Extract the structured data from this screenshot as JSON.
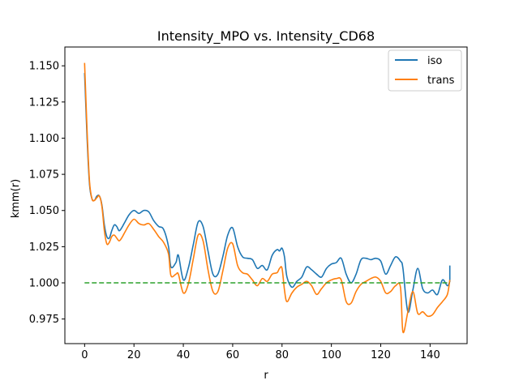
{
  "chart_data": {
    "type": "line",
    "title": "Intensity_MPO vs. Intensity_CD68",
    "xlabel": "r",
    "ylabel": "kmm(r)",
    "xlim": [
      -8,
      155
    ],
    "ylim": [
      0.958,
      1.163
    ],
    "xticks": [
      0,
      20,
      40,
      60,
      80,
      100,
      120,
      140
    ],
    "yticks": [
      0.975,
      1.0,
      1.025,
      1.05,
      1.075,
      1.1,
      1.125,
      1.15
    ],
    "ytick_labels": [
      "0.975",
      "1.000",
      "1.025",
      "1.050",
      "1.075",
      "1.100",
      "1.125",
      "1.150"
    ],
    "legend_position": "upper right",
    "grid": false,
    "series": [
      {
        "name": "iso",
        "color": "#1f77b4",
        "dash": "solid",
        "x": [
          0,
          1,
          2,
          3,
          4,
          5,
          6,
          7,
          8,
          9,
          10,
          11,
          12,
          13,
          14,
          15,
          16,
          18,
          20,
          22,
          24,
          26,
          28,
          30,
          32,
          34,
          35,
          37,
          38,
          40,
          42,
          44,
          46,
          48,
          50,
          52,
          54,
          56,
          58,
          60,
          62,
          64,
          66,
          68,
          70,
          72,
          74,
          76,
          78,
          79,
          80,
          81,
          82,
          84,
          86,
          88,
          90,
          92,
          94,
          96,
          98,
          100,
          102,
          104,
          106,
          108,
          110,
          112,
          114,
          116,
          118,
          120,
          122,
          124,
          126,
          128,
          129,
          131,
          133,
          135,
          137,
          139,
          141,
          143,
          145,
          147,
          148
        ],
        "y": [
          1.145,
          1.1,
          1.068,
          1.058,
          1.057,
          1.06,
          1.06,
          1.054,
          1.04,
          1.032,
          1.031,
          1.036,
          1.04,
          1.039,
          1.036,
          1.038,
          1.041,
          1.047,
          1.05,
          1.048,
          1.05,
          1.049,
          1.043,
          1.039,
          1.037,
          1.025,
          1.011,
          1.014,
          1.019,
          1.002,
          1.01,
          1.026,
          1.042,
          1.039,
          1.022,
          1.006,
          1.006,
          1.018,
          1.033,
          1.038,
          1.025,
          1.018,
          1.017,
          1.016,
          1.01,
          1.012,
          1.009,
          1.019,
          1.023,
          1.022,
          1.024,
          1.018,
          1.004,
          0.997,
          1.001,
          1.004,
          1.011,
          1.009,
          1.006,
          1.004,
          1.01,
          1.013,
          1.014,
          1.017,
          1.006,
          1.0,
          1.006,
          1.016,
          1.017,
          1.016,
          1.017,
          1.015,
          1.006,
          1.012,
          1.018,
          1.015,
          1.01,
          0.98,
          0.995,
          1.01,
          0.996,
          0.993,
          0.995,
          0.992,
          1.002,
          0.998,
          1.001
        ],
        "y_tail": [
          1.012
        ]
      },
      {
        "name": "trans",
        "color": "#ff7f0e",
        "dash": "solid",
        "x": [
          0,
          1,
          2,
          3,
          4,
          5,
          6,
          7,
          8,
          9,
          10,
          11,
          12,
          13,
          14,
          15,
          16,
          18,
          20,
          22,
          24,
          26,
          28,
          30,
          32,
          34,
          35,
          37,
          38,
          40,
          42,
          44,
          46,
          48,
          50,
          52,
          54,
          56,
          58,
          60,
          62,
          64,
          66,
          68,
          70,
          72,
          74,
          76,
          78,
          79,
          80,
          81,
          82,
          84,
          86,
          88,
          90,
          92,
          94,
          96,
          98,
          100,
          102,
          104,
          106,
          108,
          110,
          112,
          114,
          116,
          118,
          120,
          122,
          124,
          126,
          128,
          129,
          131,
          133,
          135,
          137,
          139,
          141,
          143,
          145,
          147,
          148
        ],
        "y": [
          1.152,
          1.105,
          1.07,
          1.058,
          1.057,
          1.059,
          1.06,
          1.053,
          1.036,
          1.027,
          1.028,
          1.032,
          1.033,
          1.031,
          1.029,
          1.031,
          1.034,
          1.04,
          1.044,
          1.041,
          1.04,
          1.041,
          1.037,
          1.032,
          1.028,
          1.02,
          1.005,
          1.006,
          1.006,
          0.993,
          0.999,
          1.016,
          1.033,
          1.029,
          1.009,
          0.994,
          0.994,
          1.008,
          1.024,
          1.027,
          1.012,
          1.007,
          1.006,
          1.002,
          0.998,
          1.003,
          1.001,
          1.006,
          1.007,
          1.01,
          1.01,
          0.995,
          0.987,
          0.993,
          0.997,
          0.999,
          1.001,
          0.998,
          0.992,
          0.996,
          1.0,
          1.002,
          1.003,
          1.002,
          0.987,
          0.986,
          0.994,
          0.999,
          1.001,
          1.003,
          1.004,
          1.001,
          0.993,
          0.994,
          0.998,
          0.997,
          0.966,
          0.98,
          0.994,
          0.979,
          0.98,
          0.977,
          0.978,
          0.983,
          0.987,
          0.992,
          1.002
        ],
        "y_tail": []
      },
      {
        "name": "",
        "color": "#2ca02c",
        "dash": "dashed",
        "x": [
          0,
          148
        ],
        "y": [
          1.0,
          1.0
        ],
        "y_tail": []
      }
    ]
  }
}
